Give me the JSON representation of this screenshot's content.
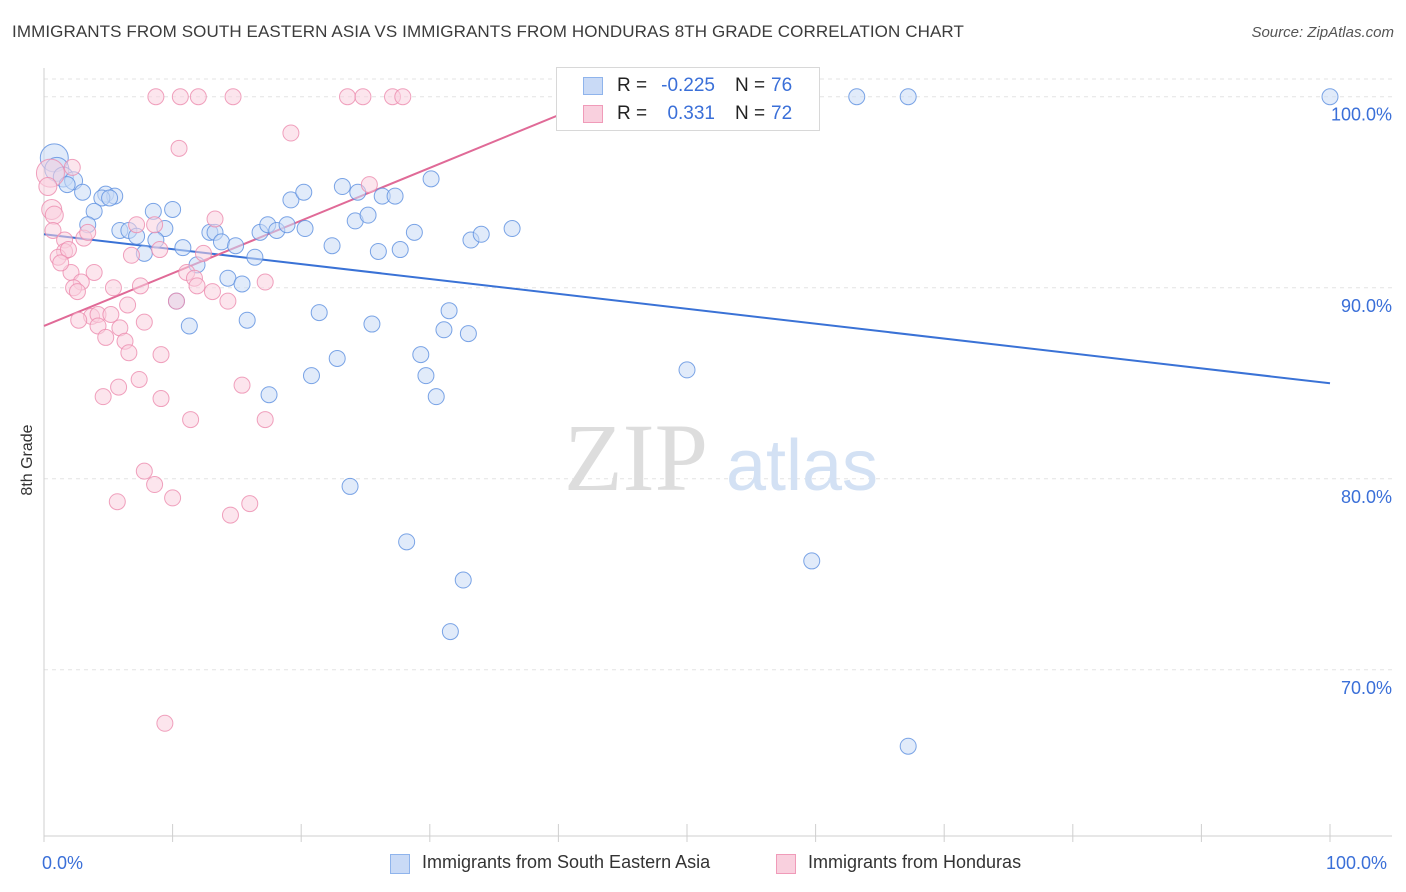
{
  "title": "IMMIGRANTS FROM SOUTH EASTERN ASIA VS IMMIGRANTS FROM HONDURAS 8TH GRADE CORRELATION CHART",
  "source": "Source: ZipAtlas.com",
  "watermark": {
    "zip": "ZIP",
    "atlas": "atlas"
  },
  "stats": [
    {
      "r_label": "R = ",
      "r_value": "-0.225",
      "n_label": "N = ",
      "n_value": "76",
      "color": "#8fb4ec",
      "fill": "#c9daf6"
    },
    {
      "r_label": "R = ",
      "r_value": "0.331",
      "n_label": "N = ",
      "n_value": "72",
      "color": "#f09bb9",
      "fill": "#f9d0de"
    }
  ],
  "legend": [
    {
      "label": "Immigrants from South Eastern Asia",
      "color": "#8fb4ec",
      "fill": "#c9daf6"
    },
    {
      "label": "Immigrants from Honduras",
      "color": "#f09bb9",
      "fill": "#f9d0de"
    }
  ],
  "chart_data": {
    "type": "scatter",
    "title": "IMMIGRANTS FROM SOUTH EASTERN ASIA VS IMMIGRANTS FROM HONDURAS 8TH GRADE CORRELATION CHART",
    "xlabel": "",
    "ylabel": "8th Grade",
    "x_tick_labels": [
      "0.0%",
      "100.0%"
    ],
    "y_tick_labels": [
      "100.0%",
      "90.0%",
      "80.0%",
      "70.0%"
    ],
    "y_ticks": [
      100,
      90,
      80,
      70
    ],
    "xlim": [
      0,
      100
    ],
    "ylim": [
      61.3,
      101.4
    ],
    "grid": true,
    "legend_position": "bottom",
    "series": [
      {
        "name": "Immigrants from South Eastern Asia",
        "color": "#5b8fe0",
        "fill": "#c9daf6",
        "trend": {
          "x": [
            0,
            100
          ],
          "y": [
            92.8,
            85.0
          ],
          "color": "#3a72d6"
        },
        "points": [
          {
            "x": 0.8,
            "y": 96.8,
            "s": 14
          },
          {
            "x": 1.0,
            "y": 96.2,
            "s": 12
          },
          {
            "x": 1.5,
            "y": 95.8,
            "s": 10
          },
          {
            "x": 2.3,
            "y": 95.6,
            "s": 9
          },
          {
            "x": 1.8,
            "y": 95.4,
            "s": 8
          },
          {
            "x": 3.0,
            "y": 95.0,
            "s": 8
          },
          {
            "x": 4.8,
            "y": 94.9,
            "s": 8
          },
          {
            "x": 5.5,
            "y": 94.8,
            "s": 8
          },
          {
            "x": 4.5,
            "y": 94.7,
            "s": 8
          },
          {
            "x": 3.9,
            "y": 94.0,
            "s": 8
          },
          {
            "x": 8.5,
            "y": 94.0,
            "s": 8
          },
          {
            "x": 10.0,
            "y": 94.1,
            "s": 8
          },
          {
            "x": 3.4,
            "y": 93.3,
            "s": 8
          },
          {
            "x": 5.9,
            "y": 93.0,
            "s": 8
          },
          {
            "x": 6.6,
            "y": 93.0,
            "s": 8
          },
          {
            "x": 7.2,
            "y": 92.7,
            "s": 8
          },
          {
            "x": 9.4,
            "y": 93.1,
            "s": 8
          },
          {
            "x": 8.7,
            "y": 92.5,
            "s": 8
          },
          {
            "x": 7.8,
            "y": 91.8,
            "s": 8
          },
          {
            "x": 10.8,
            "y": 92.1,
            "s": 8
          },
          {
            "x": 12.9,
            "y": 92.9,
            "s": 8
          },
          {
            "x": 13.3,
            "y": 92.9,
            "s": 8
          },
          {
            "x": 13.8,
            "y": 92.4,
            "s": 8
          },
          {
            "x": 14.9,
            "y": 92.2,
            "s": 8
          },
          {
            "x": 11.9,
            "y": 91.2,
            "s": 8
          },
          {
            "x": 16.4,
            "y": 91.6,
            "s": 8
          },
          {
            "x": 16.8,
            "y": 92.9,
            "s": 8
          },
          {
            "x": 17.4,
            "y": 93.3,
            "s": 8
          },
          {
            "x": 18.1,
            "y": 93.0,
            "s": 8
          },
          {
            "x": 18.9,
            "y": 93.3,
            "s": 8
          },
          {
            "x": 19.2,
            "y": 94.6,
            "s": 8
          },
          {
            "x": 20.2,
            "y": 95.0,
            "s": 8
          },
          {
            "x": 20.3,
            "y": 93.1,
            "s": 8
          },
          {
            "x": 22.4,
            "y": 92.2,
            "s": 8
          },
          {
            "x": 23.2,
            "y": 95.3,
            "s": 8
          },
          {
            "x": 24.4,
            "y": 95.0,
            "s": 8
          },
          {
            "x": 24.2,
            "y": 93.5,
            "s": 8
          },
          {
            "x": 25.2,
            "y": 93.8,
            "s": 8
          },
          {
            "x": 26.3,
            "y": 94.8,
            "s": 8
          },
          {
            "x": 27.3,
            "y": 94.8,
            "s": 8
          },
          {
            "x": 26.0,
            "y": 91.9,
            "s": 8
          },
          {
            "x": 27.7,
            "y": 92.0,
            "s": 8
          },
          {
            "x": 28.8,
            "y": 92.9,
            "s": 8
          },
          {
            "x": 30.1,
            "y": 95.7,
            "s": 8
          },
          {
            "x": 33.2,
            "y": 92.5,
            "s": 8
          },
          {
            "x": 34.0,
            "y": 92.8,
            "s": 8
          },
          {
            "x": 36.4,
            "y": 93.1,
            "s": 8
          },
          {
            "x": 14.3,
            "y": 90.5,
            "s": 8
          },
          {
            "x": 15.4,
            "y": 90.2,
            "s": 8
          },
          {
            "x": 10.3,
            "y": 89.3,
            "s": 8
          },
          {
            "x": 11.3,
            "y": 88.0,
            "s": 8
          },
          {
            "x": 15.8,
            "y": 88.3,
            "s": 8
          },
          {
            "x": 21.4,
            "y": 88.7,
            "s": 8
          },
          {
            "x": 25.5,
            "y": 88.1,
            "s": 8
          },
          {
            "x": 31.5,
            "y": 88.8,
            "s": 8
          },
          {
            "x": 31.1,
            "y": 87.8,
            "s": 8
          },
          {
            "x": 33.0,
            "y": 87.6,
            "s": 8
          },
          {
            "x": 22.8,
            "y": 86.3,
            "s": 8
          },
          {
            "x": 29.3,
            "y": 86.5,
            "s": 8
          },
          {
            "x": 20.8,
            "y": 85.4,
            "s": 8
          },
          {
            "x": 29.7,
            "y": 85.4,
            "s": 8
          },
          {
            "x": 17.5,
            "y": 84.4,
            "s": 8
          },
          {
            "x": 30.5,
            "y": 84.3,
            "s": 8
          },
          {
            "x": 50.0,
            "y": 85.7,
            "s": 8
          },
          {
            "x": 23.8,
            "y": 79.6,
            "s": 8
          },
          {
            "x": 28.2,
            "y": 76.7,
            "s": 8
          },
          {
            "x": 59.7,
            "y": 75.7,
            "s": 8
          },
          {
            "x": 32.6,
            "y": 74.7,
            "s": 8
          },
          {
            "x": 31.6,
            "y": 72.0,
            "s": 8
          },
          {
            "x": 67.2,
            "y": 66.0,
            "s": 8
          },
          {
            "x": 42.0,
            "y": 100.0,
            "s": 8
          },
          {
            "x": 43.3,
            "y": 100.0,
            "s": 8
          },
          {
            "x": 63.2,
            "y": 100.0,
            "s": 8
          },
          {
            "x": 67.2,
            "y": 100.0,
            "s": 8
          },
          {
            "x": 100.0,
            "y": 100.0,
            "s": 8
          },
          {
            "x": 5.1,
            "y": 94.7,
            "s": 8
          }
        ]
      },
      {
        "name": "Immigrants from Honduras",
        "color": "#ec8bae",
        "fill": "#f9d0de",
        "trend": {
          "x": [
            0,
            43.5
          ],
          "y": [
            88.0,
            100.0
          ],
          "color": "#e06a97"
        },
        "points": [
          {
            "x": 0.5,
            "y": 96.0,
            "s": 14
          },
          {
            "x": 0.6,
            "y": 94.1,
            "s": 10
          },
          {
            "x": 0.8,
            "y": 93.8,
            "s": 9
          },
          {
            "x": 0.7,
            "y": 93.0,
            "s": 8
          },
          {
            "x": 1.6,
            "y": 92.5,
            "s": 8
          },
          {
            "x": 1.6,
            "y": 91.9,
            "s": 8
          },
          {
            "x": 1.1,
            "y": 91.6,
            "s": 8
          },
          {
            "x": 1.9,
            "y": 92.0,
            "s": 8
          },
          {
            "x": 3.1,
            "y": 92.6,
            "s": 8
          },
          {
            "x": 3.4,
            "y": 92.9,
            "s": 8
          },
          {
            "x": 2.1,
            "y": 90.8,
            "s": 8
          },
          {
            "x": 3.9,
            "y": 90.8,
            "s": 8
          },
          {
            "x": 2.9,
            "y": 90.3,
            "s": 8
          },
          {
            "x": 2.3,
            "y": 90.0,
            "s": 8
          },
          {
            "x": 2.6,
            "y": 89.8,
            "s": 8
          },
          {
            "x": 5.4,
            "y": 90.0,
            "s": 8
          },
          {
            "x": 7.5,
            "y": 90.1,
            "s": 8
          },
          {
            "x": 6.8,
            "y": 91.7,
            "s": 8
          },
          {
            "x": 7.2,
            "y": 93.3,
            "s": 8
          },
          {
            "x": 8.6,
            "y": 93.3,
            "s": 8
          },
          {
            "x": 9.0,
            "y": 92.0,
            "s": 8
          },
          {
            "x": 11.1,
            "y": 90.8,
            "s": 8
          },
          {
            "x": 11.7,
            "y": 90.5,
            "s": 8
          },
          {
            "x": 11.9,
            "y": 90.1,
            "s": 8
          },
          {
            "x": 12.4,
            "y": 91.8,
            "s": 8
          },
          {
            "x": 13.3,
            "y": 93.6,
            "s": 8
          },
          {
            "x": 13.1,
            "y": 89.8,
            "s": 8
          },
          {
            "x": 14.3,
            "y": 89.3,
            "s": 8
          },
          {
            "x": 17.2,
            "y": 90.3,
            "s": 8
          },
          {
            "x": 10.3,
            "y": 89.3,
            "s": 8
          },
          {
            "x": 6.5,
            "y": 89.1,
            "s": 8
          },
          {
            "x": 3.7,
            "y": 88.5,
            "s": 8
          },
          {
            "x": 4.2,
            "y": 88.6,
            "s": 8
          },
          {
            "x": 5.2,
            "y": 88.6,
            "s": 8
          },
          {
            "x": 2.7,
            "y": 88.3,
            "s": 8
          },
          {
            "x": 4.2,
            "y": 88.0,
            "s": 8
          },
          {
            "x": 5.9,
            "y": 87.9,
            "s": 8
          },
          {
            "x": 7.8,
            "y": 88.2,
            "s": 8
          },
          {
            "x": 4.8,
            "y": 87.4,
            "s": 8
          },
          {
            "x": 6.3,
            "y": 87.2,
            "s": 8
          },
          {
            "x": 6.6,
            "y": 86.6,
            "s": 8
          },
          {
            "x": 9.1,
            "y": 86.5,
            "s": 8
          },
          {
            "x": 7.4,
            "y": 85.2,
            "s": 8
          },
          {
            "x": 5.8,
            "y": 84.8,
            "s": 8
          },
          {
            "x": 4.6,
            "y": 84.3,
            "s": 8
          },
          {
            "x": 9.1,
            "y": 84.2,
            "s": 8
          },
          {
            "x": 15.4,
            "y": 84.9,
            "s": 8
          },
          {
            "x": 11.4,
            "y": 83.1,
            "s": 8
          },
          {
            "x": 17.2,
            "y": 83.1,
            "s": 8
          },
          {
            "x": 7.8,
            "y": 80.4,
            "s": 8
          },
          {
            "x": 8.6,
            "y": 79.7,
            "s": 8
          },
          {
            "x": 5.7,
            "y": 78.8,
            "s": 8
          },
          {
            "x": 10.0,
            "y": 79.0,
            "s": 8
          },
          {
            "x": 16.0,
            "y": 78.7,
            "s": 8
          },
          {
            "x": 14.5,
            "y": 78.1,
            "s": 8
          },
          {
            "x": 9.4,
            "y": 67.2,
            "s": 8
          },
          {
            "x": 10.5,
            "y": 97.3,
            "s": 8
          },
          {
            "x": 19.2,
            "y": 98.1,
            "s": 8
          },
          {
            "x": 25.3,
            "y": 95.4,
            "s": 8
          },
          {
            "x": 8.7,
            "y": 100.0,
            "s": 8
          },
          {
            "x": 10.6,
            "y": 100.0,
            "s": 8
          },
          {
            "x": 12.0,
            "y": 100.0,
            "s": 8
          },
          {
            "x": 14.7,
            "y": 100.0,
            "s": 8
          },
          {
            "x": 23.6,
            "y": 100.0,
            "s": 8
          },
          {
            "x": 24.8,
            "y": 100.0,
            "s": 8
          },
          {
            "x": 27.1,
            "y": 100.0,
            "s": 8
          },
          {
            "x": 27.9,
            "y": 100.0,
            "s": 8
          },
          {
            "x": 40.6,
            "y": 100.0,
            "s": 8
          },
          {
            "x": 41.2,
            "y": 100.0,
            "s": 8
          },
          {
            "x": 0.3,
            "y": 95.3,
            "s": 9
          },
          {
            "x": 1.3,
            "y": 91.3,
            "s": 8
          },
          {
            "x": 2.2,
            "y": 96.3,
            "s": 8
          }
        ]
      }
    ]
  }
}
